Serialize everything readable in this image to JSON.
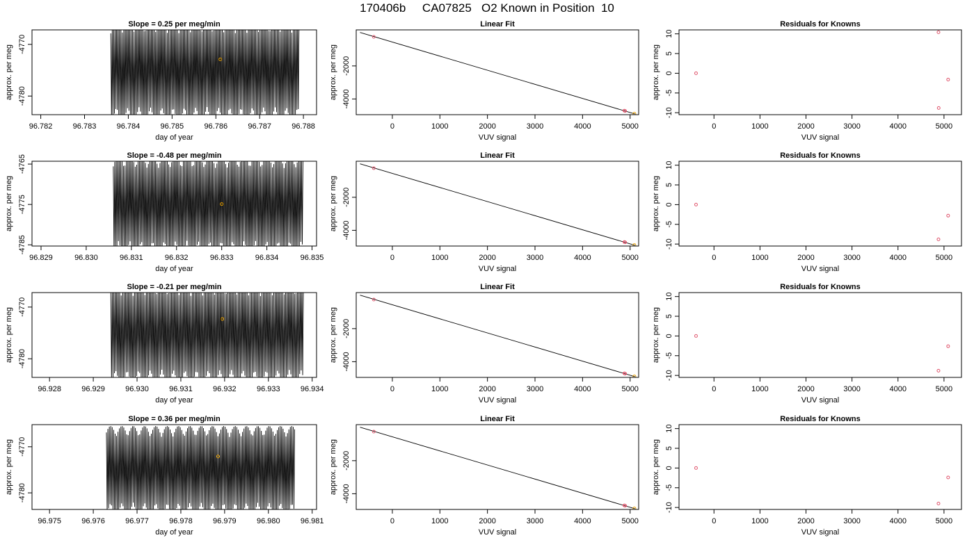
{
  "page": {
    "title": "170406b     CA07825   O2 Known in Position  10"
  },
  "colors": {
    "trace": "#000000",
    "orange_point": "#E69F00",
    "red_point": "#DF536B",
    "fit_line": "#000000"
  },
  "chart_data": [
    {
      "panel": "r1-time",
      "type": "line",
      "title": "Slope =  0.25  per meg/min",
      "xlabel": "day of year",
      "ylabel": "approx. per meg",
      "xlim": [
        96.7818,
        96.7883
      ],
      "ylim": [
        -4783.6,
        -4767.2
      ],
      "xticks": [
        "96.782",
        "96.783",
        "96.784",
        "96.785",
        "96.786",
        "96.787",
        "96.788"
      ],
      "yticks": [
        "-4770",
        "-4780"
      ],
      "trace": {
        "x_start": 96.7836,
        "x_end": 96.7879,
        "cycles": 130,
        "y_center": -4775.0,
        "amplitude": 9.5
      },
      "marker": {
        "x": 96.7861,
        "y": -4772.9
      }
    },
    {
      "panel": "r1-fit",
      "type": "scatter",
      "title": "Linear Fit",
      "xlabel": "VUV signal",
      "ylabel": "approx. per meg",
      "xlim": [
        -760,
        5180
      ],
      "ylim": [
        -4950,
        180
      ],
      "xticks": [
        "0",
        "1000",
        "2000",
        "3000",
        "4000",
        "5000"
      ],
      "yticks": [
        "-2000",
        "-4000"
      ],
      "fit_line": {
        "x": [
          -680,
          5100
        ],
        "y": [
          24,
          -4905
        ]
      },
      "points": [
        {
          "x": -390,
          "y": -240,
          "color": "red"
        },
        {
          "x": 4880,
          "y": -4710,
          "color": "red"
        },
        {
          "x": 4895,
          "y": -4725,
          "color": "red"
        },
        {
          "x": 5090,
          "y": -4890,
          "color": "orange"
        }
      ]
    },
    {
      "panel": "r1-resid",
      "type": "scatter",
      "title": "Residuals for Knowns",
      "xlabel": "VUV signal",
      "ylabel": "approx. per meg",
      "xlim": [
        -760,
        5380
      ],
      "ylim": [
        -10.5,
        11.0
      ],
      "xticks": [
        "0",
        "1000",
        "2000",
        "3000",
        "4000",
        "5000"
      ],
      "yticks": [
        "10",
        "5",
        "0",
        "-5",
        "-10"
      ],
      "points": [
        {
          "x": -390,
          "y": 0.0,
          "color": "red"
        },
        {
          "x": 4880,
          "y": 10.4,
          "color": "red"
        },
        {
          "x": 4885,
          "y": -8.8,
          "color": "red"
        },
        {
          "x": 5090,
          "y": -1.6,
          "color": "red"
        }
      ]
    },
    {
      "panel": "r2-time",
      "type": "line",
      "title": "Slope =  -0.48  per meg/min",
      "xlabel": "day of year",
      "ylabel": "approx. per meg",
      "xlim": [
        96.8288,
        96.8351
      ],
      "ylim": [
        -4785.3,
        -4764.3
      ],
      "xticks": [
        "96.829",
        "96.830",
        "96.831",
        "96.832",
        "96.833",
        "96.834",
        "96.835"
      ],
      "yticks": [
        "-4765",
        "-4775",
        "-4785"
      ],
      "trace": {
        "x_start": 96.8306,
        "x_end": 96.8348,
        "cycles": 130,
        "y_center": -4775.0,
        "amplitude": 12.0
      },
      "marker": {
        "x": 96.833,
        "y": -4774.9
      }
    },
    {
      "panel": "r2-fit",
      "type": "scatter",
      "title": "Linear Fit",
      "xlabel": "VUV signal",
      "ylabel": "approx. per meg",
      "xlim": [
        -760,
        5180
      ],
      "ylim": [
        -4950,
        180
      ],
      "xticks": [
        "0",
        "1000",
        "2000",
        "3000",
        "4000",
        "5000"
      ],
      "yticks": [
        "-2000",
        "-4000"
      ],
      "fit_line": {
        "x": [
          -680,
          5100
        ],
        "y": [
          24,
          -4905
        ]
      },
      "points": [
        {
          "x": -390,
          "y": -240,
          "color": "red"
        },
        {
          "x": 4880,
          "y": -4710,
          "color": "red"
        },
        {
          "x": 4895,
          "y": -4725,
          "color": "red"
        },
        {
          "x": 5090,
          "y": -4890,
          "color": "orange"
        }
      ]
    },
    {
      "panel": "r2-resid",
      "type": "scatter",
      "title": "Residuals for Knowns",
      "xlabel": "VUV signal",
      "ylabel": "approx. per meg",
      "xlim": [
        -760,
        5380
      ],
      "ylim": [
        -10.5,
        11.0
      ],
      "xticks": [
        "0",
        "1000",
        "2000",
        "3000",
        "4000",
        "5000"
      ],
      "yticks": [
        "10",
        "5",
        "0",
        "-5",
        "-10"
      ],
      "points": [
        {
          "x": -390,
          "y": 0.0,
          "color": "red"
        },
        {
          "x": 4880,
          "y": -8.8,
          "color": "red"
        },
        {
          "x": 5090,
          "y": -2.8,
          "color": "red"
        }
      ]
    },
    {
      "panel": "r3-time",
      "type": "line",
      "title": "Slope =  -0.21  per meg/min",
      "xlabel": "day of year",
      "ylabel": "approx. per meg",
      "xlim": [
        96.9276,
        96.9341
      ],
      "ylim": [
        -4783.6,
        -4767.2
      ],
      "xticks": [
        "96.928",
        "96.929",
        "96.930",
        "96.931",
        "96.932",
        "96.933",
        "96.934"
      ],
      "yticks": [
        "-4770",
        "-4780"
      ],
      "trace": {
        "x_start": 96.9294,
        "x_end": 96.9338,
        "cycles": 130,
        "y_center": -4775.0,
        "amplitude": 9.5
      },
      "marker": {
        "x": 96.93195,
        "y": -4772.3
      }
    },
    {
      "panel": "r3-fit",
      "type": "scatter",
      "title": "Linear Fit",
      "xlabel": "VUV signal",
      "ylabel": "approx. per meg",
      "xlim": [
        -760,
        5180
      ],
      "ylim": [
        -4950,
        180
      ],
      "xticks": [
        "0",
        "1000",
        "2000",
        "3000",
        "4000",
        "5000"
      ],
      "yticks": [
        "-2000",
        "-4000"
      ],
      "fit_line": {
        "x": [
          -680,
          5100
        ],
        "y": [
          24,
          -4905
        ]
      },
      "points": [
        {
          "x": -390,
          "y": -240,
          "color": "red"
        },
        {
          "x": 4880,
          "y": -4710,
          "color": "red"
        },
        {
          "x": 4895,
          "y": -4725,
          "color": "red"
        },
        {
          "x": 5090,
          "y": -4890,
          "color": "orange"
        }
      ]
    },
    {
      "panel": "r3-resid",
      "type": "scatter",
      "title": "Residuals for Knowns",
      "xlabel": "VUV signal",
      "ylabel": "approx. per meg",
      "xlim": [
        -760,
        5380
      ],
      "ylim": [
        -10.5,
        11.0
      ],
      "xticks": [
        "0",
        "1000",
        "2000",
        "3000",
        "4000",
        "5000"
      ],
      "yticks": [
        "10",
        "5",
        "0",
        "-5",
        "-10"
      ],
      "points": [
        {
          "x": -390,
          "y": 0.0,
          "color": "red"
        },
        {
          "x": 4880,
          "y": -8.8,
          "color": "red"
        },
        {
          "x": 5090,
          "y": -2.6,
          "color": "red"
        }
      ]
    },
    {
      "panel": "r4-time",
      "type": "line",
      "title": "Slope =  0.36  per meg/min",
      "xlabel": "day of year",
      "ylabel": "approx. per meg",
      "xlim": [
        96.9746,
        96.9811
      ],
      "ylim": [
        -4783.6,
        -4765.2
      ],
      "xticks": [
        "96.975",
        "96.976",
        "96.977",
        "96.978",
        "96.979",
        "96.980",
        "96.981"
      ],
      "yticks": [
        "-4770",
        "-4780"
      ],
      "trace": {
        "x_start": 96.9763,
        "x_end": 96.9806,
        "cycles": 130,
        "y_center": -4775.0,
        "amplitude": 9.5
      },
      "marker": {
        "x": 96.97885,
        "y": -4772.1
      }
    },
    {
      "panel": "r4-fit",
      "type": "scatter",
      "title": "Linear Fit",
      "xlabel": "VUV signal",
      "ylabel": "approx. per meg",
      "xlim": [
        -760,
        5180
      ],
      "ylim": [
        -4950,
        180
      ],
      "xticks": [
        "0",
        "1000",
        "2000",
        "3000",
        "4000",
        "5000"
      ],
      "yticks": [
        "-2000",
        "-4000"
      ],
      "fit_line": {
        "x": [
          -680,
          5100
        ],
        "y": [
          24,
          -4905
        ]
      },
      "points": [
        {
          "x": -390,
          "y": -240,
          "color": "red"
        },
        {
          "x": 4880,
          "y": -4710,
          "color": "red"
        },
        {
          "x": 4895,
          "y": -4725,
          "color": "red"
        },
        {
          "x": 5090,
          "y": -4890,
          "color": "orange"
        }
      ]
    },
    {
      "panel": "r4-resid",
      "type": "scatter",
      "title": "Residuals for Knowns",
      "xlabel": "VUV signal",
      "ylabel": "approx. per meg",
      "xlim": [
        -760,
        5380
      ],
      "ylim": [
        -10.5,
        11.0
      ],
      "xticks": [
        "0",
        "1000",
        "2000",
        "3000",
        "4000",
        "5000"
      ],
      "yticks": [
        "10",
        "5",
        "0",
        "-5",
        "-10"
      ],
      "points": [
        {
          "x": -390,
          "y": 0.0,
          "color": "red"
        },
        {
          "x": 4880,
          "y": -9.0,
          "color": "red"
        },
        {
          "x": 5090,
          "y": -2.4,
          "color": "red"
        }
      ]
    }
  ]
}
